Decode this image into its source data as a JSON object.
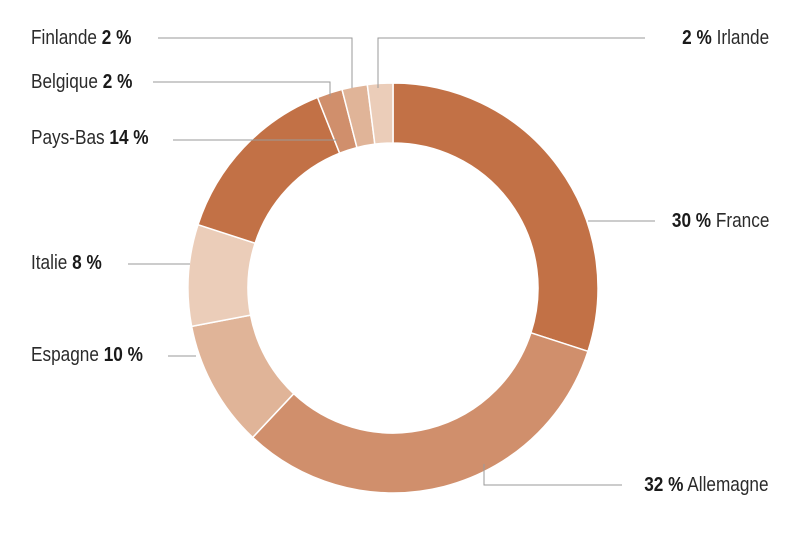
{
  "chart_data": {
    "type": "pie",
    "title": "",
    "unit": "%",
    "slices": [
      {
        "label": "France",
        "value_label": "30 %",
        "value": 30,
        "color": "#c27146"
      },
      {
        "label": "Allemagne",
        "value_label": "32 %",
        "value": 32,
        "color": "#d08f6c"
      },
      {
        "label": "Espagne",
        "value_label": "10 %",
        "value": 10,
        "color": "#e0b498"
      },
      {
        "label": "Italie",
        "value_label": "8 %",
        "value": 8,
        "color": "#ebcdb9"
      },
      {
        "label": "Pays-Bas",
        "value_label": "14 %",
        "value": 14,
        "color": "#c27146"
      },
      {
        "label": "Belgique",
        "value_label": "2 %",
        "value": 2,
        "color": "#d08f6c"
      },
      {
        "label": "Finlande",
        "value_label": "2 %",
        "value": 2,
        "color": "#e0b498"
      },
      {
        "label": "Irlande",
        "value_label": "2 %",
        "value": 2,
        "color": "#ebcdb9"
      }
    ],
    "legend": "none",
    "label_style": "callout-lines",
    "grid": false
  }
}
